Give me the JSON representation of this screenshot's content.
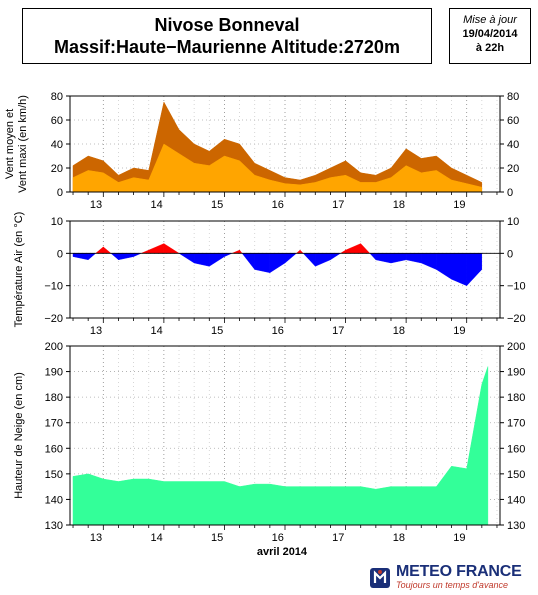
{
  "header": {
    "title_line1": "Nivose Bonneval",
    "title_line2": "Massif:Haute−Maurienne Altitude:2720m",
    "date_label": "Mise à jour",
    "date_value": "19/04/2014",
    "date_time": "à 22h"
  },
  "branding": {
    "name": "METEO FRANCE",
    "tagline": "Toujours un temps d'avance",
    "primary_color": "#1a2f78",
    "accent_color": "#c0392b"
  },
  "chart_data": [
    {
      "type": "area",
      "name": "wind",
      "ylabel_line1": "Vent moyen et",
      "ylabel_line2": "Vent maxi (en km/h)",
      "ylim": [
        0,
        80
      ],
      "yticks": [
        0,
        20,
        40,
        60,
        80
      ],
      "xticks": [
        "13",
        "14",
        "15",
        "16",
        "17",
        "18",
        "19"
      ],
      "x_days": [
        12.5,
        12.75,
        13.0,
        13.25,
        13.5,
        13.75,
        14.0,
        14.25,
        14.5,
        14.75,
        15.0,
        15.25,
        15.5,
        15.75,
        16.0,
        16.25,
        16.5,
        16.75,
        17.0,
        17.25,
        17.5,
        17.75,
        18.0,
        18.25,
        18.5,
        18.75,
        19.0,
        19.25
      ],
      "series": [
        {
          "key": "max",
          "color": "#cc6600",
          "values": [
            22,
            30,
            26,
            14,
            20,
            18,
            75,
            52,
            40,
            34,
            44,
            40,
            24,
            18,
            12,
            10,
            14,
            20,
            26,
            16,
            14,
            20,
            36,
            28,
            30,
            20,
            14,
            8
          ]
        },
        {
          "key": "mean",
          "color": "#ffa500",
          "values": [
            12,
            18,
            16,
            8,
            12,
            10,
            40,
            32,
            24,
            22,
            30,
            26,
            14,
            10,
            7,
            6,
            8,
            12,
            14,
            8,
            8,
            12,
            22,
            16,
            18,
            10,
            7,
            4
          ]
        }
      ],
      "grid": true
    },
    {
      "type": "area",
      "name": "temperature",
      "ylabel": "Température Air (en °C)",
      "ylim": [
        -20,
        10
      ],
      "yticks": [
        -20,
        -10,
        0,
        10
      ],
      "xticks": [
        "13",
        "14",
        "15",
        "16",
        "17",
        "18",
        "19"
      ],
      "x_days": [
        12.5,
        12.75,
        13.0,
        13.25,
        13.5,
        13.75,
        14.0,
        14.25,
        14.5,
        14.75,
        15.0,
        15.25,
        15.5,
        15.75,
        16.0,
        16.25,
        16.5,
        16.75,
        17.0,
        17.25,
        17.5,
        17.75,
        18.0,
        18.25,
        18.5,
        18.75,
        19.0,
        19.25
      ],
      "values": [
        -1,
        -2,
        2,
        -2,
        -1,
        1,
        3,
        0,
        -3,
        -4,
        -1,
        1,
        -5,
        -6,
        -3,
        1,
        -4,
        -2,
        1,
        3,
        -2,
        -3,
        -2,
        -3,
        -5,
        -8,
        -10,
        -5
      ],
      "positive_color": "#ff0000",
      "negative_color": "#0000ff",
      "grid": true
    },
    {
      "type": "area",
      "name": "snow_depth",
      "ylabel": "Hauteur de Neige (en cm)",
      "ylim": [
        130,
        200
      ],
      "yticks": [
        130,
        140,
        150,
        160,
        170,
        180,
        190,
        200
      ],
      "xticks": [
        "13",
        "14",
        "15",
        "16",
        "17",
        "18",
        "19"
      ],
      "xlabel": "avril 2014",
      "x_days": [
        12.5,
        12.75,
        13.0,
        13.25,
        13.5,
        13.75,
        14.0,
        14.25,
        14.5,
        14.75,
        15.0,
        15.25,
        15.5,
        15.75,
        16.0,
        16.25,
        16.5,
        16.75,
        17.0,
        17.25,
        17.5,
        17.75,
        18.0,
        18.25,
        18.5,
        18.75,
        19.0,
        19.25,
        19.35
      ],
      "values": [
        149,
        150,
        148,
        147,
        148,
        148,
        147,
        147,
        147,
        147,
        147,
        145,
        146,
        146,
        145,
        145,
        145,
        145,
        145,
        145,
        144,
        145,
        145,
        145,
        145,
        153,
        152,
        185,
        192
      ],
      "color": "#33ff99",
      "grid": true
    }
  ]
}
